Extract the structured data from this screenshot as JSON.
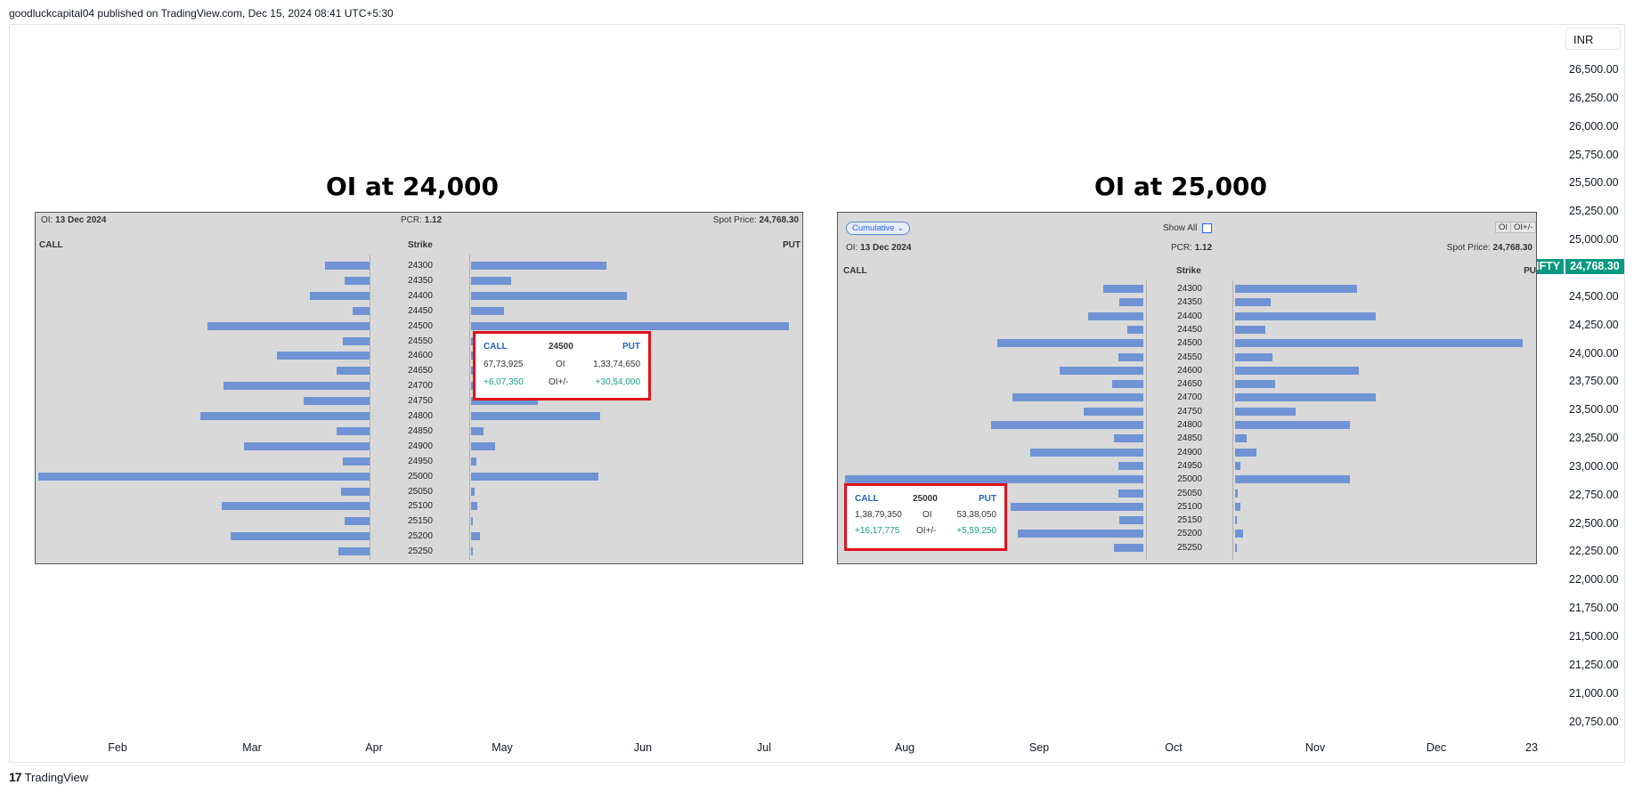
{
  "header": {
    "publish_text": "goodluckcapital04 published on TradingView.com, Dec 15, 2024 08:41 UTC+5:30"
  },
  "price_axis": {
    "currency": "INR",
    "ticks": [
      "26,500.00",
      "26,250.00",
      "26,000.00",
      "25,750.00",
      "25,500.00",
      "25,250.00",
      "25,000.00",
      "24,750.00",
      "24,500.00",
      "24,250.00",
      "24,000.00",
      "23,750.00",
      "23,500.00",
      "23,250.00",
      "23,000.00",
      "22,750.00",
      "22,500.00",
      "22,250.00",
      "22,000.00",
      "21,750.00",
      "21,500.00",
      "21,250.00",
      "21,000.00",
      "20,750.00"
    ],
    "symbol_tag": {
      "symbol": "NIFTY",
      "value": "24,768.30",
      "color": "#089981"
    }
  },
  "time_axis": {
    "ticks": [
      "Feb",
      "Mar",
      "Apr",
      "May",
      "Jun",
      "Jul",
      "Aug",
      "Sep",
      "Oct",
      "Nov",
      "Dec",
      "23"
    ]
  },
  "footer": {
    "logo_mark": "17",
    "logo_text": "TradingView"
  },
  "panels": [
    {
      "title": "OI at 24,000",
      "oi_label": "OI:",
      "oi_date": "13 Dec 2024",
      "pcr_label": "PCR:",
      "pcr_value": "1.12",
      "spot_label": "Spot Price:",
      "spot_value": "24,768.30",
      "call_label": "CALL",
      "strike_label": "Strike",
      "put_label": "PUT",
      "strikes": [
        "24300",
        "24350",
        "24400",
        "24450",
        "24500",
        "24550",
        "24600",
        "24650",
        "24700",
        "24750",
        "24800",
        "24850",
        "24900",
        "24950",
        "25000",
        "25050",
        "25100",
        "25150",
        "25200",
        "25250"
      ],
      "call_oi": [
        0.135,
        0.075,
        0.18,
        0.05,
        0.49,
        0.08,
        0.28,
        0.1,
        0.44,
        0.2,
        0.51,
        0.1,
        0.38,
        0.08,
        1.0,
        0.085,
        0.445,
        0.075,
        0.42,
        0.095
      ],
      "put_oi": [
        0.425,
        0.125,
        0.49,
        0.105,
        1.0,
        0.05,
        0.11,
        0.045,
        0.215,
        0.21,
        0.405,
        0.04,
        0.075,
        0.018,
        0.4,
        0.01,
        0.02,
        0.006,
        0.028,
        0.006
      ],
      "tooltip": {
        "call": "CALL",
        "strike": "24500",
        "put": "PUT",
        "call_oi": "67,73,925",
        "oi_label": "OI",
        "put_oi": "1,33,74,650",
        "call_chg": "+6,07,350",
        "chg_label": "OI+/-",
        "put_chg": "+30,54,000"
      }
    },
    {
      "title": "OI at 25,000",
      "cumulative_label": "Cumulative",
      "show_all_label": "Show All",
      "oi_toggle": "OI",
      "oi_chg_toggle": "OI+/-",
      "oi_label": "OI:",
      "oi_date": "13 Dec 2024",
      "pcr_label": "PCR:",
      "pcr_value": "1.12",
      "spot_label": "Spot Price:",
      "spot_value": "24,768.30",
      "call_label": "CALL",
      "strike_label": "Strike",
      "put_label": "PU",
      "strikes": [
        "24300",
        "24350",
        "24400",
        "24450",
        "24500",
        "24550",
        "24600",
        "24650",
        "24700",
        "24750",
        "24800",
        "24850",
        "24900",
        "24950",
        "25000",
        "25050",
        "25100",
        "25150",
        "25200",
        "25250"
      ],
      "call_oi": [
        0.135,
        0.08,
        0.185,
        0.055,
        0.49,
        0.085,
        0.28,
        0.105,
        0.44,
        0.2,
        0.51,
        0.1,
        0.38,
        0.085,
        1.0,
        0.085,
        0.445,
        0.08,
        0.42,
        0.1
      ],
      "put_oi": [
        0.425,
        0.125,
        0.49,
        0.105,
        1.0,
        0.13,
        0.43,
        0.14,
        0.49,
        0.21,
        0.4,
        0.04,
        0.075,
        0.02,
        0.4,
        0.01,
        0.02,
        0.006,
        0.028,
        0.006
      ],
      "tooltip": {
        "call": "CALL",
        "strike": "25000",
        "put": "PUT",
        "call_oi": "1,38,79,350",
        "oi_label": "OI",
        "put_oi": "53,38,050",
        "call_chg": "+16,17,775",
        "chg_label": "OI+/-",
        "put_chg": "+5,59,250"
      }
    }
  ]
}
